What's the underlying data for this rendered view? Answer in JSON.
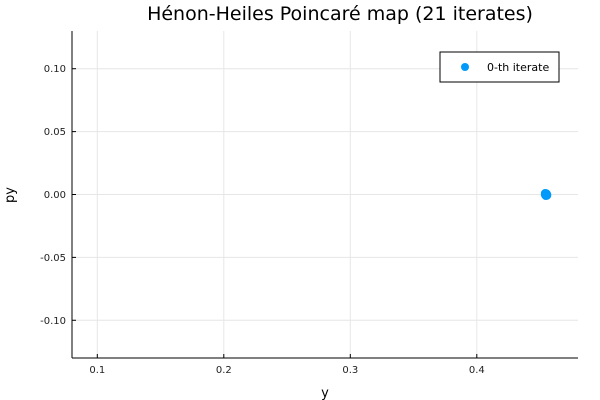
{
  "chart_data": {
    "type": "scatter",
    "title": "Hénon-Heiles Poincaré map (21 iterates)",
    "xlabel": "y",
    "ylabel": "py",
    "xlim": [
      0.08,
      0.48
    ],
    "ylim": [
      -0.13,
      0.13
    ],
    "xticks": [
      0.1,
      0.2,
      0.3,
      0.4
    ],
    "xtick_labels": [
      "0.1",
      "0.2",
      "0.3",
      "0.4"
    ],
    "yticks": [
      -0.1,
      -0.05,
      0.0,
      0.05,
      0.1
    ],
    "ytick_labels": [
      "-0.10",
      "-0.05",
      "0.00",
      "0.05",
      "0.10"
    ],
    "grid": true,
    "legend_position": "top-right",
    "series": [
      {
        "name": "0-th iterate",
        "color": "#009AFA",
        "x": [
          0.454,
          0.4545,
          0.455,
          0.4555,
          0.454,
          0.4545,
          0.455,
          0.4555,
          0.4542,
          0.4548,
          0.4553
        ],
        "y": [
          0.0,
          0.0,
          0.0,
          0.0,
          0.001,
          -0.001,
          0.0008,
          -0.0008,
          -0.0005,
          0.0005,
          0.0003
        ]
      }
    ]
  }
}
